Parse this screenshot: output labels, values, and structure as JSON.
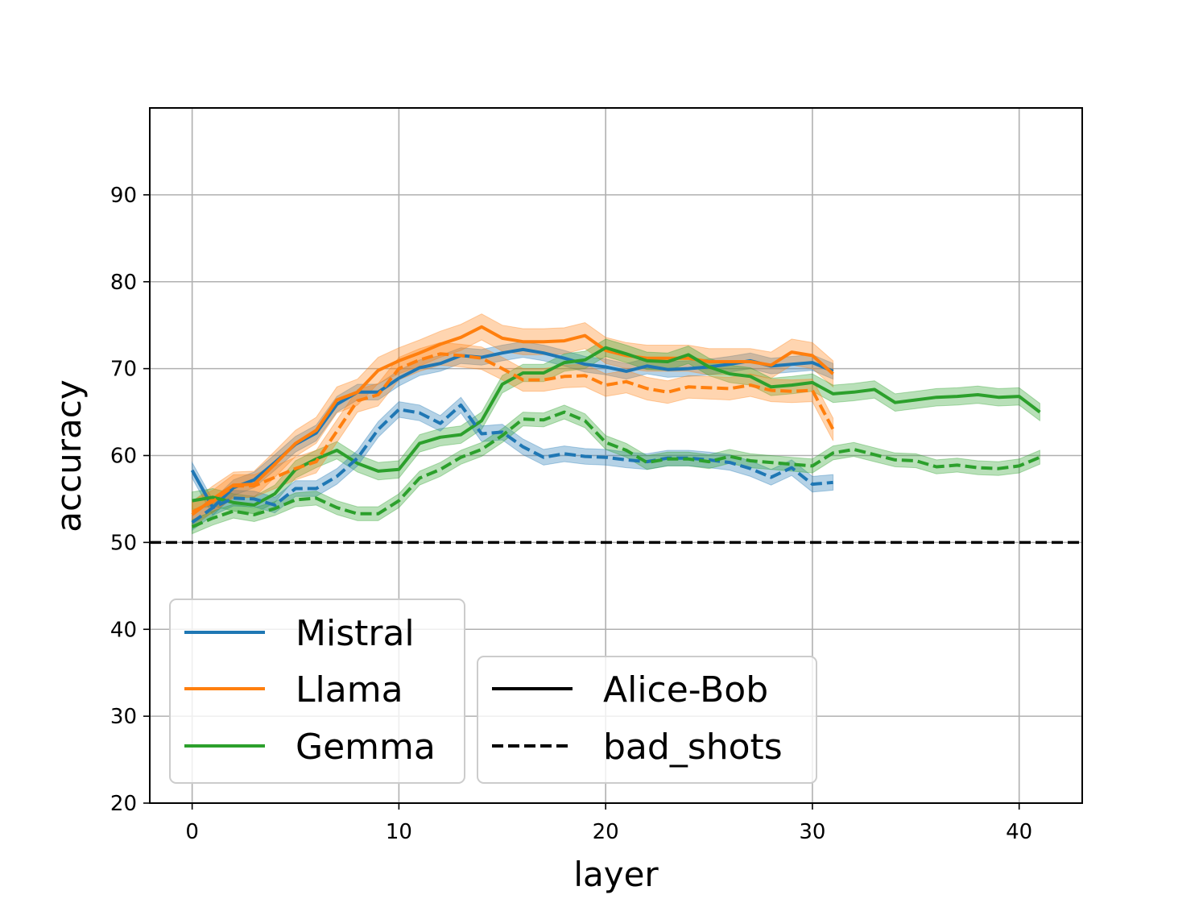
{
  "chart_data": {
    "type": "line",
    "title": "",
    "xlabel": "layer",
    "ylabel": "accuracy",
    "xlim": [
      -2.05,
      43.05
    ],
    "ylim": [
      20,
      100
    ],
    "xticks": [
      0,
      10,
      20,
      30,
      40
    ],
    "yticks": [
      20,
      30,
      40,
      50,
      60,
      70,
      80,
      90
    ],
    "grid": true,
    "reference_line": {
      "y": 50,
      "style": "dashed",
      "color": "#000000"
    },
    "series": [
      {
        "name": "Mistral",
        "color": "#1f77b4",
        "style": "solid",
        "x": [
          0,
          1,
          2,
          3,
          4,
          5,
          6,
          7,
          8,
          9,
          10,
          11,
          12,
          13,
          14,
          15,
          16,
          17,
          18,
          19,
          20,
          21,
          22,
          23,
          24,
          25,
          26,
          27,
          28,
          29,
          30,
          31
        ],
        "y": [
          58.3,
          54.0,
          56.3,
          57.2,
          59.2,
          61.3,
          62.6,
          65.9,
          67.3,
          67.3,
          68.9,
          70.1,
          70.6,
          71.5,
          71.3,
          71.8,
          72.2,
          71.8,
          71.2,
          70.5,
          70.2,
          69.7,
          70.3,
          69.9,
          70.0,
          70.2,
          70.5,
          70.9,
          70.3,
          70.5,
          70.7,
          69.7
        ],
        "band": 0.9
      },
      {
        "name": "Llama",
        "color": "#ff7f0e",
        "style": "solid",
        "x": [
          0,
          1,
          2,
          3,
          4,
          5,
          6,
          7,
          8,
          9,
          10,
          11,
          12,
          13,
          14,
          15,
          16,
          17,
          18,
          19,
          20,
          21,
          22,
          23,
          24,
          25,
          26,
          27,
          28,
          29,
          30,
          31
        ],
        "y": [
          53.2,
          55.0,
          56.6,
          56.7,
          59.0,
          61.4,
          62.9,
          66.4,
          67.3,
          69.8,
          70.9,
          71.8,
          72.8,
          73.6,
          74.8,
          73.5,
          73.1,
          73.1,
          73.2,
          73.8,
          72.1,
          71.5,
          71.2,
          71.2,
          71.2,
          70.8,
          70.8,
          70.8,
          70.4,
          71.9,
          71.5,
          69.4
        ],
        "band": 1.5
      },
      {
        "name": "Gemma",
        "color": "#2ca02c",
        "style": "solid",
        "x": [
          0,
          1,
          2,
          3,
          4,
          5,
          6,
          7,
          8,
          9,
          10,
          11,
          12,
          13,
          14,
          15,
          16,
          17,
          18,
          19,
          20,
          21,
          22,
          23,
          24,
          25,
          26,
          27,
          28,
          29,
          30,
          31,
          32,
          33,
          34,
          35,
          36,
          37,
          38,
          39,
          40,
          41
        ],
        "y": [
          54.8,
          55.2,
          54.6,
          54.3,
          55.6,
          58.4,
          59.6,
          60.6,
          59.1,
          58.2,
          58.4,
          61.4,
          62.1,
          62.4,
          64.0,
          68.2,
          69.5,
          69.5,
          70.7,
          71.0,
          72.4,
          71.7,
          70.9,
          70.8,
          71.6,
          70.2,
          69.4,
          69.1,
          67.9,
          68.1,
          68.4,
          67.1,
          67.3,
          67.6,
          66.1,
          66.4,
          66.7,
          66.8,
          67.0,
          66.7,
          66.8,
          65.0
        ],
        "band": 1.0
      },
      {
        "name": "Mistral bad_shots",
        "color": "#1f77b4",
        "style": "dashed",
        "x": [
          0,
          1,
          2,
          3,
          4,
          5,
          6,
          7,
          8,
          9,
          10,
          11,
          12,
          13,
          14,
          15,
          16,
          17,
          18,
          19,
          20,
          21,
          22,
          23,
          24,
          25,
          26,
          27,
          28,
          29,
          30,
          31
        ],
        "y": [
          52.3,
          54.0,
          55.1,
          55.0,
          54.3,
          56.2,
          56.2,
          57.6,
          59.7,
          63.0,
          65.3,
          64.9,
          63.7,
          65.8,
          62.5,
          62.7,
          61.0,
          59.8,
          60.2,
          59.9,
          59.8,
          59.5,
          59.3,
          59.7,
          59.7,
          59.5,
          59.2,
          58.5,
          57.5,
          58.6,
          56.7,
          56.9
        ],
        "band": 0.9
      },
      {
        "name": "Llama bad_shots",
        "color": "#ff7f0e",
        "style": "dashed",
        "x": [
          0,
          1,
          2,
          3,
          4,
          5,
          6,
          7,
          8,
          9,
          10,
          11,
          12,
          13,
          14,
          15,
          16,
          17,
          18,
          19,
          20,
          21,
          22,
          23,
          24,
          25,
          26,
          27,
          28,
          29,
          30,
          31
        ],
        "y": [
          53.5,
          54.7,
          56.5,
          56.5,
          57.5,
          58.5,
          59.3,
          62.8,
          66.3,
          67.0,
          70.0,
          71.0,
          71.7,
          71.5,
          71.2,
          70.0,
          68.7,
          68.7,
          69.1,
          69.2,
          68.1,
          68.5,
          67.7,
          67.3,
          67.9,
          67.8,
          67.7,
          68.1,
          67.5,
          67.4,
          67.5,
          63.0
        ],
        "band": 1.3
      },
      {
        "name": "Gemma bad_shots",
        "color": "#2ca02c",
        "style": "dashed",
        "x": [
          0,
          1,
          2,
          3,
          4,
          5,
          6,
          7,
          8,
          9,
          10,
          11,
          12,
          13,
          14,
          15,
          16,
          17,
          18,
          19,
          20,
          21,
          22,
          23,
          24,
          25,
          26,
          27,
          28,
          29,
          30,
          31,
          32,
          33,
          34,
          35,
          36,
          37,
          38,
          39,
          40,
          41
        ],
        "y": [
          51.8,
          52.8,
          53.6,
          53.2,
          53.9,
          54.9,
          55.1,
          54.0,
          53.3,
          53.3,
          54.8,
          57.4,
          58.4,
          59.8,
          60.7,
          62.3,
          64.2,
          64.1,
          65.0,
          64.0,
          61.5,
          60.6,
          59.2,
          59.6,
          59.6,
          59.3,
          59.9,
          59.4,
          59.2,
          59.0,
          58.8,
          60.3,
          60.7,
          60.1,
          59.5,
          59.4,
          58.7,
          58.9,
          58.6,
          58.5,
          58.8,
          59.8
        ],
        "band": 0.8
      }
    ],
    "legends": [
      {
        "placement": "lower-left",
        "entries": [
          {
            "label": "Mistral",
            "color": "#1f77b4",
            "style": "solid"
          },
          {
            "label": "Llama",
            "color": "#ff7f0e",
            "style": "solid"
          },
          {
            "label": "Gemma",
            "color": "#2ca02c",
            "style": "solid"
          }
        ]
      },
      {
        "placement": "lower-center",
        "entries": [
          {
            "label": "Alice-Bob",
            "color": "#000000",
            "style": "solid"
          },
          {
            "label": "bad_shots",
            "color": "#000000",
            "style": "dashed"
          }
        ]
      }
    ]
  }
}
